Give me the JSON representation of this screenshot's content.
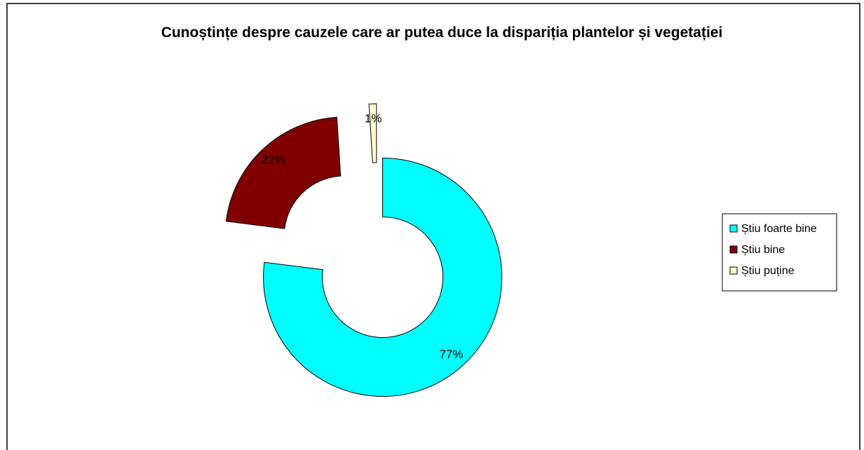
{
  "chart_data": {
    "type": "doughnut",
    "title": "Cunoștințe despre cauzele care ar putea duce la dispariția plantelor și vegetației",
    "categories": [
      "Știu foarte bine",
      "Știu bine",
      "Știu puține"
    ],
    "values": [
      77,
      22,
      1
    ],
    "value_labels": [
      "77%",
      "22%",
      "1%"
    ],
    "colors": [
      "#00ffff",
      "#800000",
      "#ffffcc"
    ],
    "legend": "right"
  }
}
